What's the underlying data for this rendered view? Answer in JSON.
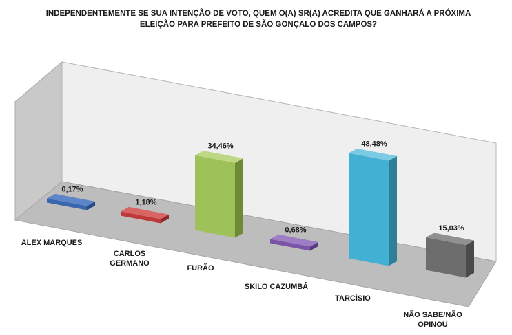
{
  "chart_data": {
    "type": "bar",
    "title_lines": [
      "INDEPENDENTEMENTE SE SUA INTENÇÃO DE VOTO, QUEM O(A) SR(A) ACREDITA QUE GANHARÁ A PRÓXIMA",
      "ELEIÇÃO PARA PREFEITO DE SÃO GONÇALO DOS CAMPOS?"
    ],
    "categories": [
      [
        "ALEX MARQUES"
      ],
      [
        "CARLOS",
        "GERMANO"
      ],
      [
        "FURÃO"
      ],
      [
        "SKILO CAZUMBÁ"
      ],
      [
        "TARCÍSIO"
      ],
      [
        "NÃO SABE/NÃO",
        "OPINOU"
      ]
    ],
    "values": [
      0.17,
      1.18,
      34.46,
      0.68,
      48.48,
      15.03
    ],
    "value_labels": [
      "0,17%",
      "1,18%",
      "34,46%",
      "0,68%",
      "48,48%",
      "15,03%"
    ],
    "colors": [
      {
        "front": "#3a66ad",
        "side": "#294b82",
        "top": "#5d86c8"
      },
      {
        "front": "#c0393a",
        "side": "#8e2728",
        "top": "#d96464"
      },
      {
        "front": "#9ec15a",
        "side": "#6f8a37",
        "top": "#bdd785"
      },
      {
        "front": "#7a54a6",
        "side": "#563a7a",
        "top": "#9d7ec4"
      },
      {
        "front": "#42b0d3",
        "side": "#2d7f9a",
        "top": "#7ccbe4"
      },
      {
        "front": "#6d6d6d",
        "side": "#4a4a4a",
        "top": "#909090"
      }
    ],
    "ylim": [
      0,
      60
    ],
    "grid": false,
    "legend": "none",
    "style": "3d-bar"
  }
}
